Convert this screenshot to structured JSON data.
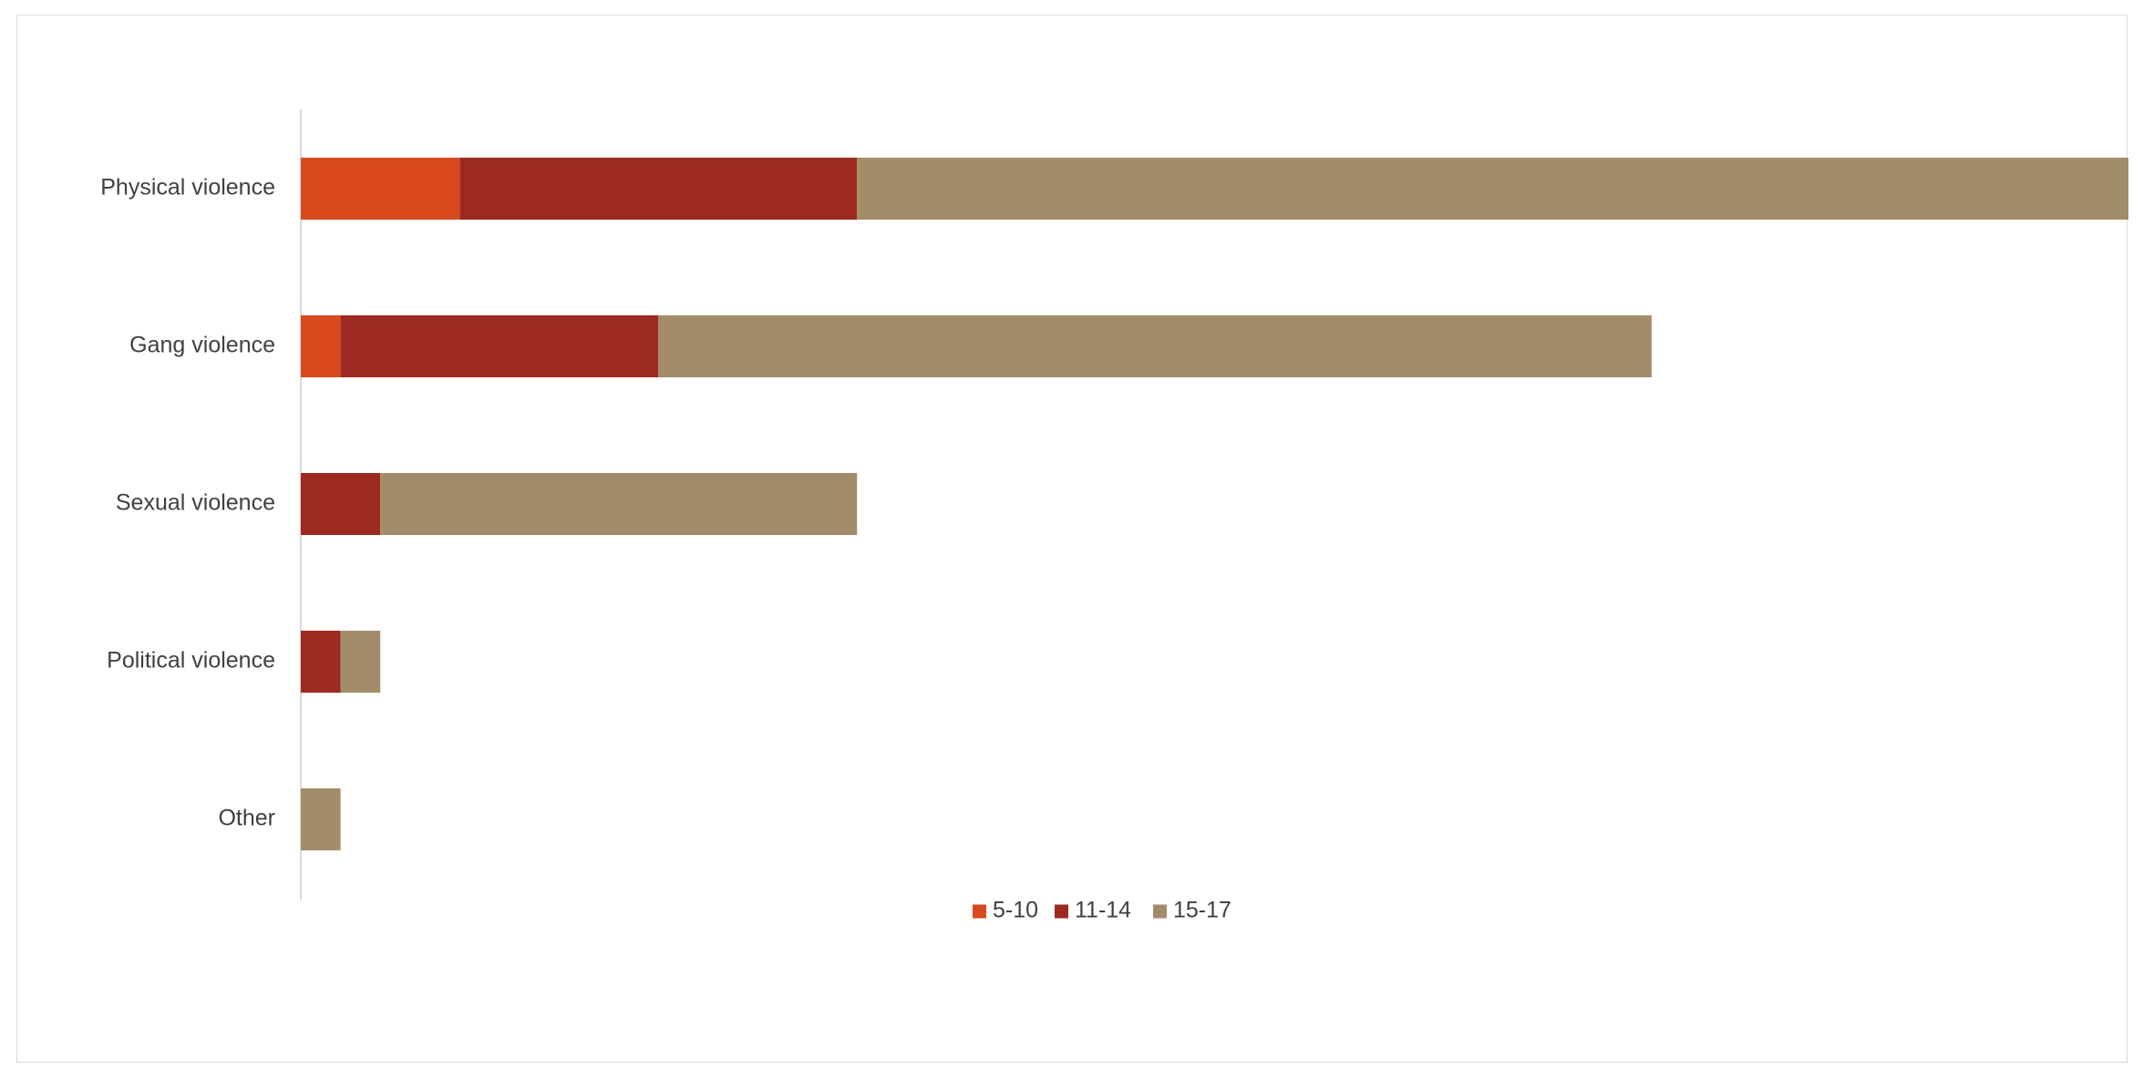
{
  "chart_data": {
    "type": "bar",
    "orientation": "horizontal",
    "stacked": true,
    "title": "",
    "xlabel": "",
    "ylabel": "",
    "categories": [
      "Physical violence",
      "Gang violence",
      "Sexual violence",
      "Political violence",
      "Other"
    ],
    "series": [
      {
        "name": "5-10",
        "color": "#d9491e",
        "values": [
          4,
          1,
          0,
          0,
          0
        ]
      },
      {
        "name": "11-14",
        "color": "#9c2a20",
        "values": [
          10,
          8,
          2,
          1,
          0
        ]
      },
      {
        "name": "15-17",
        "color": "#a38c6a",
        "values": [
          32,
          25,
          12,
          1,
          1
        ]
      }
    ],
    "xlim": [
      0,
      46
    ],
    "grid": false,
    "legend_position": "bottom"
  }
}
